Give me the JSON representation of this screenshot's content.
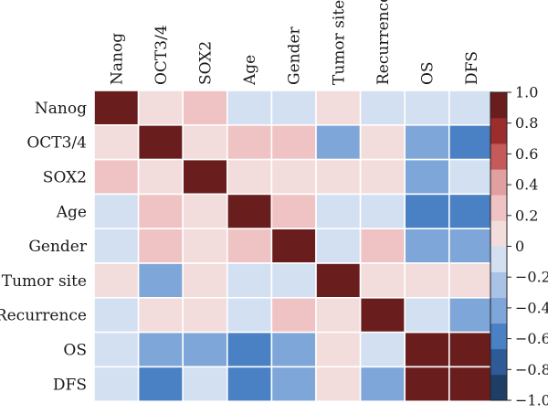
{
  "chart_data": {
    "type": "heatmap",
    "title": "",
    "xlabel": "",
    "ylabel": "",
    "rows": [
      "Nanog",
      "OCT3/4",
      "SOX2",
      "Age",
      "Gender",
      "Tumor site",
      "Recurrence",
      "OS",
      "DFS"
    ],
    "columns": [
      "Nanog",
      "OCT3/4",
      "SOX2",
      "Age",
      "Gender",
      "Tumor site",
      "Recurrence",
      "OS",
      "DFS"
    ],
    "values": [
      [
        1.0,
        0.1,
        0.3,
        -0.15,
        -0.15,
        0.1,
        -0.15,
        -0.15,
        -0.15
      ],
      [
        0.1,
        1.0,
        0.1,
        0.25,
        0.25,
        -0.35,
        0.1,
        -0.35,
        -0.55
      ],
      [
        0.3,
        0.1,
        1.0,
        0.1,
        0.1,
        0.1,
        0.1,
        -0.35,
        -0.15
      ],
      [
        -0.05,
        0.2,
        0.1,
        1.0,
        0.25,
        -0.15,
        -0.15,
        -0.55,
        -0.55
      ],
      [
        -0.05,
        0.2,
        0.1,
        0.2,
        1.0,
        -0.15,
        0.2,
        -0.35,
        -0.35
      ],
      [
        0.1,
        -0.35,
        0.1,
        -0.15,
        -0.15,
        1.0,
        0.1,
        0.1,
        0.1
      ],
      [
        -0.05,
        0.1,
        0.1,
        -0.15,
        0.25,
        0.1,
        1.0,
        -0.15,
        -0.35
      ],
      [
        -0.05,
        -0.35,
        -0.35,
        -0.55,
        -0.35,
        0.1,
        -0.15,
        1.0,
        1.0
      ],
      [
        -0.05,
        -0.55,
        -0.15,
        -0.55,
        -0.35,
        0.1,
        -0.35,
        1.0,
        1.0
      ]
    ],
    "colorbar": {
      "range": [
        -1.0,
        1.0
      ],
      "ticks": [
        "1.0",
        "0.8",
        "0.6",
        "0.4",
        "0.2",
        "0",
        "−0.2",
        "−0.4",
        "−0.6",
        "−0.8",
        "−1.0"
      ],
      "colors": [
        "#1f3e66",
        "#2e5a96",
        "#4a80c4",
        "#7fa6d8",
        "#a9c3e6",
        "#d2e0f1",
        "#f3dcdc",
        "#efc3c3",
        "#e0a0a0",
        "#c45a5a",
        "#9b2d2d",
        "#6a1d1d"
      ]
    }
  }
}
